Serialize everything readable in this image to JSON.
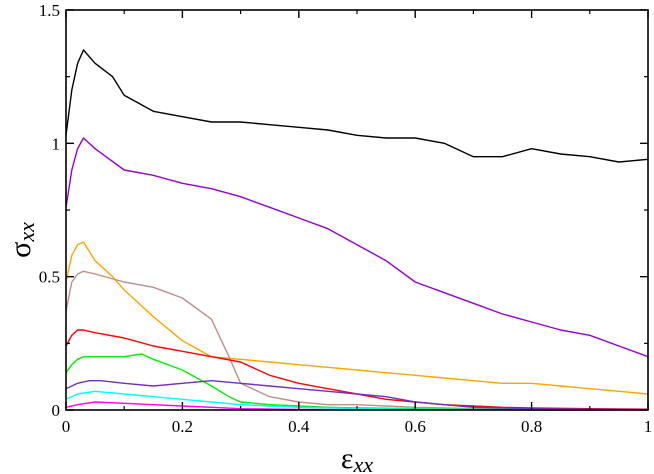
{
  "chart_data": {
    "type": "line",
    "title": "",
    "xlabel": "εxx",
    "ylabel": "σxx",
    "xlabel_main": "ε",
    "xlabel_sub": "xx",
    "ylabel_main": "σ",
    "ylabel_sub": "xx",
    "xlim": [
      0,
      1
    ],
    "ylim": [
      0,
      1.5
    ],
    "grid": false,
    "legend": "none",
    "x_ticks": [
      0,
      0.2,
      0.4,
      0.6,
      0.8,
      1
    ],
    "x_tick_labels": [
      "0",
      "0.2",
      "0.4",
      "0.6",
      "0.8",
      "1"
    ],
    "y_ticks": [
      0,
      0.5,
      1,
      1.5
    ],
    "y_tick_labels": [
      "0",
      "0.5",
      "1",
      "1.5"
    ],
    "series": [
      {
        "color": "#000000",
        "x": [
          0,
          0.01,
          0.02,
          0.03,
          0.05,
          0.08,
          0.1,
          0.15,
          0.2,
          0.25,
          0.3,
          0.35,
          0.4,
          0.45,
          0.5,
          0.55,
          0.6,
          0.65,
          0.7,
          0.75,
          0.8,
          0.85,
          0.9,
          0.95,
          1.0
        ],
        "y": [
          1.03,
          1.2,
          1.3,
          1.35,
          1.3,
          1.25,
          1.18,
          1.12,
          1.1,
          1.08,
          1.08,
          1.07,
          1.06,
          1.05,
          1.03,
          1.02,
          1.02,
          1.0,
          0.95,
          0.95,
          0.98,
          0.96,
          0.95,
          0.93,
          0.94
        ]
      },
      {
        "color": "#9400d3",
        "x": [
          0,
          0.01,
          0.02,
          0.03,
          0.05,
          0.1,
          0.15,
          0.2,
          0.25,
          0.3,
          0.35,
          0.4,
          0.45,
          0.5,
          0.55,
          0.6,
          0.65,
          0.7,
          0.75,
          0.8,
          0.85,
          0.9,
          0.95,
          1.0
        ],
        "y": [
          0.76,
          0.9,
          0.98,
          1.02,
          0.98,
          0.9,
          0.88,
          0.85,
          0.83,
          0.8,
          0.76,
          0.72,
          0.68,
          0.62,
          0.56,
          0.48,
          0.44,
          0.4,
          0.36,
          0.33,
          0.3,
          0.28,
          0.24,
          0.2
        ]
      },
      {
        "color": "#ffa500",
        "x": [
          0,
          0.01,
          0.02,
          0.03,
          0.05,
          0.08,
          0.1,
          0.15,
          0.2,
          0.25,
          0.3,
          0.35,
          0.4,
          0.45,
          0.5,
          0.55,
          0.6,
          0.65,
          0.7,
          0.75,
          0.8,
          0.85,
          0.9,
          0.95,
          1.0
        ],
        "y": [
          0.48,
          0.58,
          0.62,
          0.63,
          0.56,
          0.5,
          0.45,
          0.35,
          0.26,
          0.2,
          0.19,
          0.18,
          0.17,
          0.16,
          0.15,
          0.14,
          0.13,
          0.12,
          0.11,
          0.1,
          0.1,
          0.09,
          0.08,
          0.07,
          0.06
        ]
      },
      {
        "color": "#bc8f8f",
        "x": [
          0,
          0.01,
          0.02,
          0.03,
          0.05,
          0.1,
          0.15,
          0.2,
          0.25,
          0.28,
          0.3,
          0.35,
          0.4,
          0.45,
          0.5,
          0.55,
          0.6,
          0.65,
          0.7,
          0.8,
          0.9,
          1.0
        ],
        "y": [
          0.37,
          0.48,
          0.51,
          0.52,
          0.51,
          0.48,
          0.46,
          0.42,
          0.34,
          0.2,
          0.1,
          0.05,
          0.03,
          0.02,
          0.02,
          0.015,
          0.01,
          0.008,
          0.005,
          0.005,
          0.003,
          0.002
        ]
      },
      {
        "color": "#ff0000",
        "x": [
          0,
          0.01,
          0.02,
          0.03,
          0.05,
          0.1,
          0.15,
          0.2,
          0.25,
          0.3,
          0.35,
          0.4,
          0.45,
          0.5,
          0.55,
          0.6,
          0.65,
          0.7,
          0.75,
          0.8,
          0.9,
          1.0
        ],
        "y": [
          0.24,
          0.28,
          0.3,
          0.3,
          0.29,
          0.27,
          0.24,
          0.22,
          0.2,
          0.18,
          0.13,
          0.1,
          0.08,
          0.06,
          0.04,
          0.03,
          0.02,
          0.015,
          0.01,
          0.008,
          0.005,
          0.003
        ]
      },
      {
        "color": "#00ee00",
        "x": [
          0,
          0.01,
          0.02,
          0.03,
          0.05,
          0.1,
          0.13,
          0.15,
          0.2,
          0.25,
          0.28,
          0.3,
          0.35,
          0.4,
          0.45,
          0.5,
          0.6,
          0.7,
          0.8,
          1.0
        ],
        "y": [
          0.14,
          0.17,
          0.19,
          0.2,
          0.2,
          0.2,
          0.21,
          0.19,
          0.15,
          0.09,
          0.05,
          0.03,
          0.02,
          0.015,
          0.01,
          0.008,
          0.005,
          0.003,
          0.002,
          0.001
        ]
      },
      {
        "color": "#7030c0",
        "x": [
          0,
          0.02,
          0.04,
          0.06,
          0.1,
          0.15,
          0.2,
          0.25,
          0.3,
          0.35,
          0.4,
          0.45,
          0.5,
          0.55,
          0.6,
          0.65,
          0.7,
          0.8,
          0.9,
          1.0
        ],
        "y": [
          0.08,
          0.1,
          0.11,
          0.11,
          0.1,
          0.09,
          0.1,
          0.11,
          0.1,
          0.09,
          0.08,
          0.07,
          0.06,
          0.05,
          0.03,
          0.02,
          0.01,
          0.005,
          0.003,
          0.002
        ]
      },
      {
        "color": "#00ffff",
        "x": [
          0,
          0.02,
          0.05,
          0.1,
          0.15,
          0.2,
          0.25,
          0.3,
          0.35,
          0.4,
          0.45,
          0.5,
          0.6,
          0.8,
          1.0
        ],
        "y": [
          0.04,
          0.06,
          0.07,
          0.06,
          0.05,
          0.04,
          0.03,
          0.02,
          0.015,
          0.01,
          0.008,
          0.005,
          0.003,
          0.001,
          0.001
        ]
      },
      {
        "color": "#ff00ff",
        "x": [
          0,
          0.02,
          0.05,
          0.1,
          0.15,
          0.2,
          0.25,
          0.3,
          0.4,
          0.5,
          0.6,
          0.8,
          1.0
        ],
        "y": [
          0.01,
          0.02,
          0.03,
          0.025,
          0.02,
          0.015,
          0.01,
          0.005,
          0.002,
          0.001,
          0.001,
          0.0,
          0.0
        ]
      }
    ]
  }
}
